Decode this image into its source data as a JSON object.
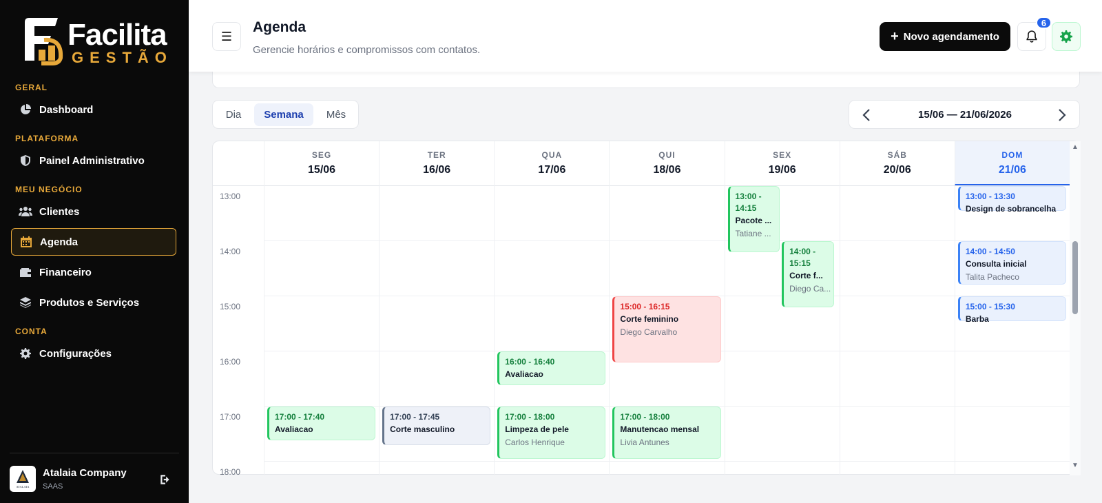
{
  "brand": {
    "name_line1": "Facilita",
    "name_line2": "GESTÃO",
    "gold": "#e8a93a"
  },
  "sidebar": {
    "sections": [
      {
        "label": "GERAL",
        "items": [
          {
            "label": "Dashboard",
            "icon": "pie-chart-icon"
          }
        ]
      },
      {
        "label": "PLATAFORMA",
        "items": [
          {
            "label": "Painel Administrativo",
            "icon": "shield-icon"
          }
        ]
      },
      {
        "label": "MEU NEGÓCIO",
        "items": [
          {
            "label": "Clientes",
            "icon": "users-icon"
          },
          {
            "label": "Agenda",
            "icon": "calendar-icon",
            "active": true
          },
          {
            "label": "Financeiro",
            "icon": "wallet-icon"
          },
          {
            "label": "Produtos e Serviços",
            "icon": "layers-icon"
          }
        ]
      },
      {
        "label": "CONTA",
        "items": [
          {
            "label": "Configurações",
            "icon": "gear-icon"
          }
        ]
      }
    ],
    "company": {
      "name": "Atalaia Company",
      "plan": "SAAS",
      "avatar_text": "ATALAIA"
    }
  },
  "header": {
    "title": "Agenda",
    "subtitle": "Gerencie horários e compromissos com contatos.",
    "new_button": "Novo agendamento",
    "notifications_count": "6"
  },
  "view_tabs": [
    {
      "label": "Dia"
    },
    {
      "label": "Semana",
      "active": true
    },
    {
      "label": "Mês"
    }
  ],
  "week_range": "15/06 — 21/06/2026",
  "calendar": {
    "days": [
      {
        "dow": "SEG",
        "date": "15/06"
      },
      {
        "dow": "TER",
        "date": "16/06"
      },
      {
        "dow": "QUA",
        "date": "17/06"
      },
      {
        "dow": "QUI",
        "date": "18/06"
      },
      {
        "dow": "SEX",
        "date": "19/06"
      },
      {
        "dow": "SÁB",
        "date": "20/06"
      },
      {
        "dow": "DOM",
        "date": "21/06",
        "today": true
      }
    ],
    "hours": [
      "13:00",
      "14:00",
      "15:00",
      "16:00",
      "17:00",
      "18:00"
    ],
    "events": [
      {
        "day": 4,
        "start": "13:00",
        "end": "14:15",
        "time": "13:00 - 14:15",
        "title": "Pacote ...",
        "client": "Tatiane ...",
        "color": "green",
        "lane": 0,
        "lanes": 2
      },
      {
        "day": 4,
        "start": "14:00",
        "end": "15:15",
        "time": "14:00 - 15:15",
        "title": "Corte f...",
        "client": "Diego Ca...",
        "color": "green",
        "lane": 1,
        "lanes": 2
      },
      {
        "day": 6,
        "start": "13:00",
        "end": "13:30",
        "time": "13:00 - 13:30",
        "title": "Design de sobrancelha",
        "client": "",
        "color": "blue"
      },
      {
        "day": 6,
        "start": "14:00",
        "end": "14:50",
        "time": "14:00 - 14:50",
        "title": "Consulta inicial",
        "client": "Talita Pacheco",
        "color": "blue"
      },
      {
        "day": 6,
        "start": "15:00",
        "end": "15:30",
        "time": "15:00 - 15:30",
        "title": "Barba",
        "client": "",
        "color": "blue"
      },
      {
        "day": 3,
        "start": "15:00",
        "end": "16:15",
        "time": "15:00 - 16:15",
        "title": "Corte feminino",
        "client": "Diego Carvalho",
        "color": "red"
      },
      {
        "day": 2,
        "start": "16:00",
        "end": "16:40",
        "time": "16:00 - 16:40",
        "title": "Avaliacao",
        "client": "",
        "color": "green"
      },
      {
        "day": 0,
        "start": "17:00",
        "end": "17:40",
        "time": "17:00 - 17:40",
        "title": "Avaliacao",
        "client": "",
        "color": "green"
      },
      {
        "day": 1,
        "start": "17:00",
        "end": "17:45",
        "time": "17:00 - 17:45",
        "title": "Corte masculino",
        "client": "",
        "color": "gray"
      },
      {
        "day": 2,
        "start": "17:00",
        "end": "18:00",
        "time": "17:00 - 18:00",
        "title": "Limpeza de pele",
        "client": "Carlos Henrique",
        "color": "green"
      },
      {
        "day": 3,
        "start": "17:00",
        "end": "18:00",
        "time": "17:00 - 18:00",
        "title": "Manutencao mensal",
        "client": "Livia Antunes",
        "color": "green"
      }
    ]
  }
}
